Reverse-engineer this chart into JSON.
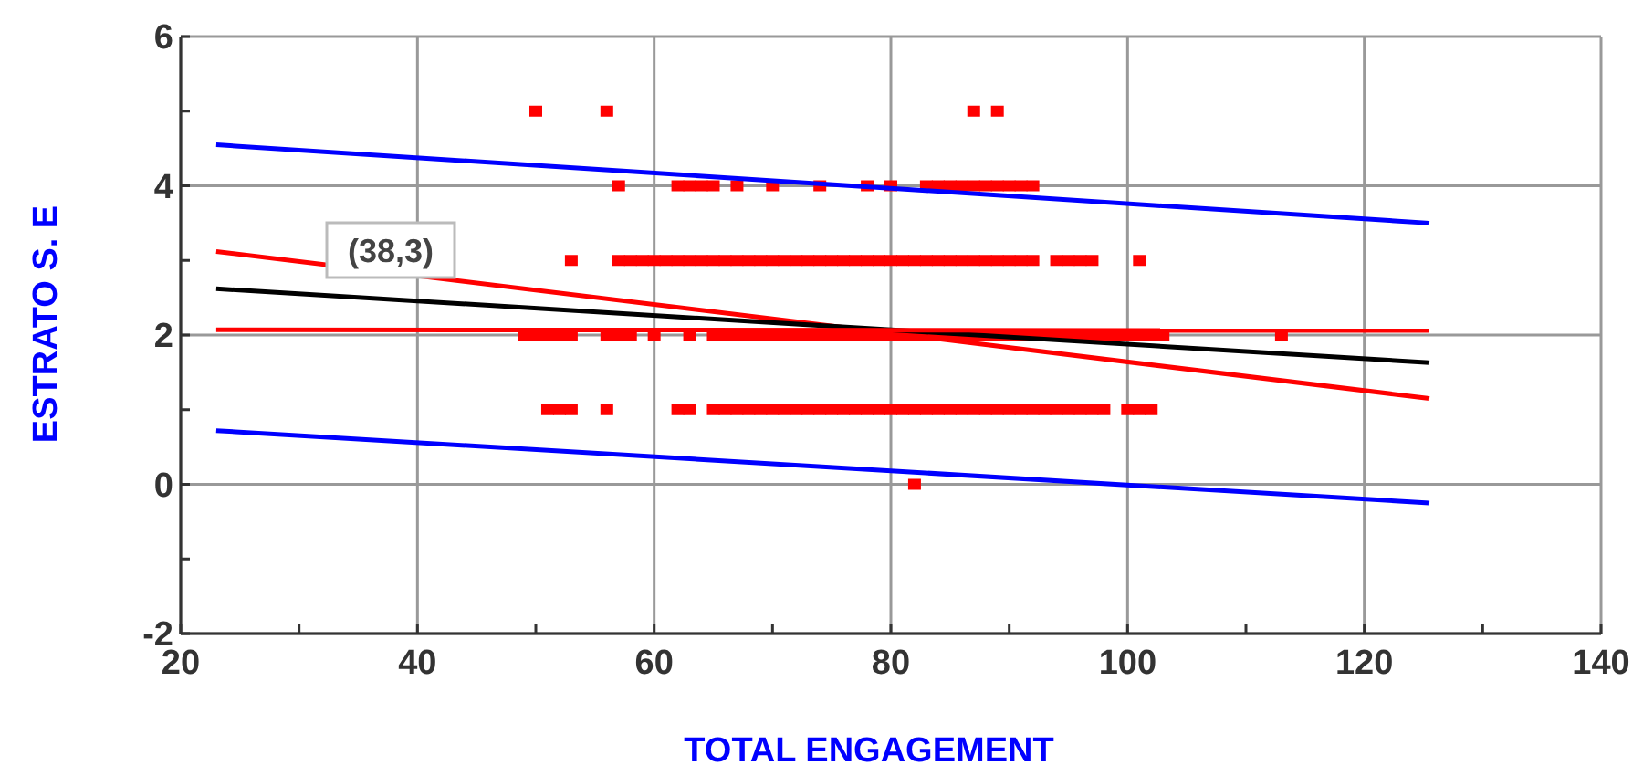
{
  "chart_data": {
    "type": "scatter",
    "xlabel": "TOTAL ENGAGEMENT",
    "ylabel": "ESTRATO S. E",
    "xlim": [
      20,
      140
    ],
    "ylim": [
      -2,
      6
    ],
    "xticks": [
      20,
      {
        "value": 30,
        "label": null
      },
      40,
      {
        "value": 50,
        "label": null
      },
      60,
      {
        "value": 70,
        "label": null
      },
      80,
      {
        "value": 90,
        "label": null
      },
      100,
      {
        "value": 110,
        "label": null
      },
      120,
      {
        "value": 130,
        "label": null
      },
      140
    ],
    "yticks": [
      -2,
      {
        "value": -1,
        "label": null
      },
      0,
      {
        "value": 1,
        "label": null
      },
      2,
      {
        "value": 3,
        "label": null
      },
      4,
      {
        "value": 5,
        "label": null
      },
      6
    ],
    "grid": true,
    "series": [
      {
        "marker": "square",
        "color": "#ff0000",
        "x": [
          50,
          56,
          87,
          89,
          57,
          62,
          63,
          64,
          65,
          67,
          70,
          74,
          78,
          80,
          83,
          84,
          85,
          86,
          87,
          88,
          89,
          90,
          91,
          92,
          53,
          57,
          58,
          59,
          60,
          61,
          62,
          63,
          64,
          65,
          66,
          67,
          68,
          69,
          70,
          71,
          72,
          73,
          74,
          75,
          76,
          77,
          78,
          79,
          80,
          81,
          82,
          83,
          84,
          85,
          86,
          87,
          88,
          89,
          90,
          91,
          92,
          94,
          95,
          96,
          97,
          101,
          49,
          50,
          51,
          52,
          53,
          56,
          57,
          58,
          60,
          63,
          65,
          66,
          67,
          68,
          69,
          70,
          71,
          72,
          73,
          74,
          75,
          76,
          77,
          78,
          79,
          80,
          81,
          82,
          83,
          84,
          85,
          86,
          87,
          88,
          89,
          90,
          91,
          92,
          93,
          94,
          95,
          96,
          97,
          98,
          99,
          100,
          101,
          102,
          103,
          113,
          51,
          52,
          53,
          56,
          62,
          63,
          65,
          66,
          67,
          68,
          69,
          70,
          71,
          72,
          73,
          74,
          75,
          76,
          77,
          78,
          79,
          80,
          81,
          82,
          83,
          84,
          85,
          86,
          87,
          88,
          89,
          90,
          91,
          92,
          93,
          94,
          95,
          96,
          97,
          98,
          100,
          101,
          102,
          82
        ],
        "values": [
          5,
          5,
          5,
          5,
          4,
          4,
          4,
          4,
          4,
          4,
          4,
          4,
          4,
          4,
          4,
          4,
          4,
          4,
          4,
          4,
          4,
          4,
          4,
          4,
          3,
          3,
          3,
          3,
          3,
          3,
          3,
          3,
          3,
          3,
          3,
          3,
          3,
          3,
          3,
          3,
          3,
          3,
          3,
          3,
          3,
          3,
          3,
          3,
          3,
          3,
          3,
          3,
          3,
          3,
          3,
          3,
          3,
          3,
          3,
          3,
          3,
          3,
          3,
          3,
          3,
          3,
          2,
          2,
          2,
          2,
          2,
          2,
          2,
          2,
          2,
          2,
          2,
          2,
          2,
          2,
          2,
          2,
          2,
          2,
          2,
          2,
          2,
          2,
          2,
          2,
          2,
          2,
          2,
          2,
          2,
          2,
          2,
          2,
          2,
          2,
          2,
          2,
          2,
          2,
          2,
          2,
          2,
          2,
          2,
          2,
          2,
          2,
          2,
          2,
          2,
          2,
          1,
          1,
          1,
          1,
          1,
          1,
          1,
          1,
          1,
          1,
          1,
          1,
          1,
          1,
          1,
          1,
          1,
          1,
          1,
          1,
          1,
          1,
          1,
          1,
          1,
          1,
          1,
          1,
          1,
          1,
          1,
          1,
          1,
          1,
          1,
          1,
          1,
          1,
          1,
          1,
          1,
          1,
          1,
          0
        ]
      },
      {
        "type": "line",
        "color": "#0000ff",
        "x": [
          23,
          125.5
        ],
        "values": [
          4.55,
          3.5
        ]
      },
      {
        "type": "line",
        "color": "#ff0000",
        "x": [
          23,
          125.5
        ],
        "values": [
          3.12,
          1.15
        ]
      },
      {
        "type": "line",
        "color": "#000000",
        "x": [
          23,
          125.5
        ],
        "values": [
          2.62,
          1.63
        ]
      },
      {
        "type": "line",
        "color": "#ff0000",
        "x": [
          23,
          125.5
        ],
        "values": [
          2.07,
          2.06
        ]
      },
      {
        "type": "line",
        "color": "#0000ff",
        "x": [
          23,
          125.5
        ],
        "values": [
          0.72,
          -0.25
        ]
      }
    ],
    "annotations": [
      "(38,3)"
    ]
  }
}
